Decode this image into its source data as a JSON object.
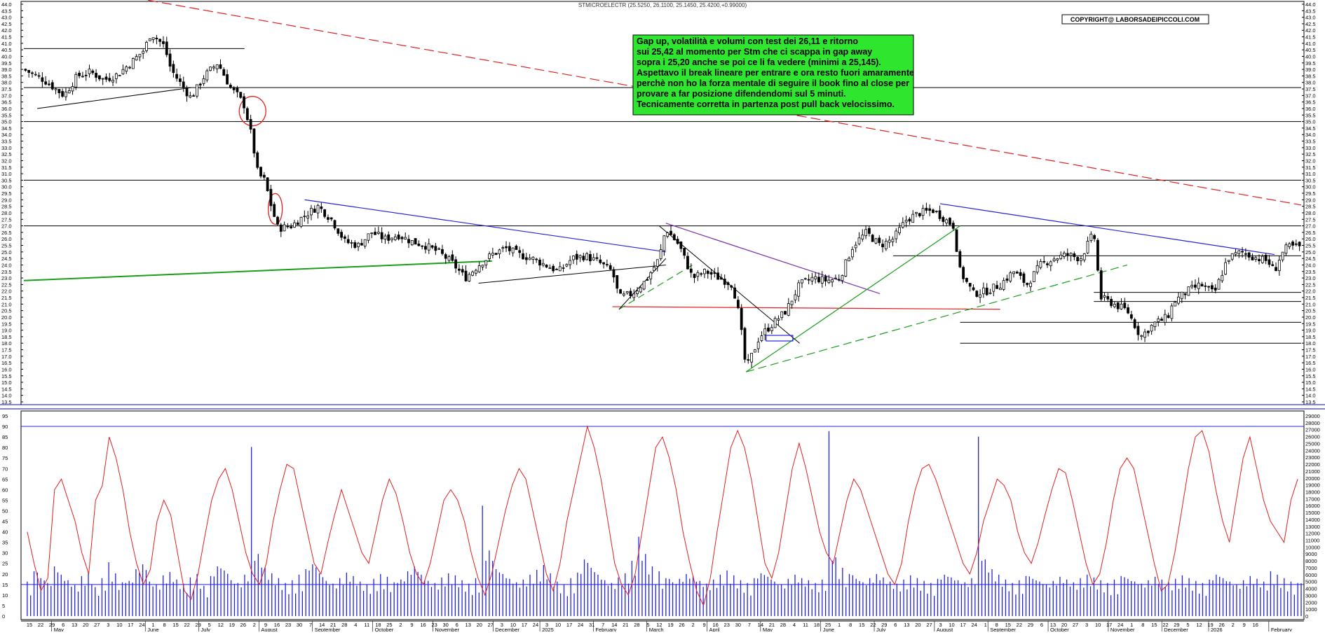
{
  "chart_data": [
    {
      "type": "candlestick",
      "title": "STMICROELECTR (25.5250, 26.1100, 25.1450, 25.4200,+0.99000)",
      "copyright": "COPYRIGHT@ LABORSADEIPICCOLI.COM",
      "annotation_lines": [
        "Gap up, volatilità e volumi con test dei 26,11 e ritorno",
        "sui 25,42 al momento per Stm che ci scappa in gap away",
        "sopra i 25,20 anche se poi ce li fa vedere (minimi a 25,145).",
        "Aspettavo il break lineare per entrare e ora resto fuori amaramente",
        "perchè non ho la forza mentale di seguire il book fino al close per",
        "provare a far posizione difendendomi sul 5 minuti.",
        "Tecnicamente corretta in partenza post pull back velocissimo."
      ],
      "ylim": [
        13.5,
        44.0
      ],
      "y_ticks": [
        "44.0",
        "43.5",
        "43.0",
        "42.5",
        "42.0",
        "41.5",
        "41.0",
        "40.5",
        "40.0",
        "39.5",
        "39.0",
        "38.5",
        "38.0",
        "37.5",
        "37.0",
        "36.5",
        "36.0",
        "35.5",
        "35.0",
        "34.5",
        "34.0",
        "33.5",
        "33.0",
        "32.5",
        "32.0",
        "31.5",
        "31.0",
        "30.5",
        "30.0",
        "29.5",
        "29.0",
        "28.5",
        "28.0",
        "27.5",
        "27.0",
        "26.5",
        "26.0",
        "25.5",
        "25.0",
        "24.5",
        "24.0",
        "23.5",
        "23.0",
        "22.5",
        "22.0",
        "21.5",
        "21.0",
        "20.5",
        "20.0",
        "19.5",
        "19.0",
        "18.5",
        "18.0",
        "17.5",
        "17.0",
        "16.5",
        "16.0",
        "15.5",
        "15.0",
        "14.5",
        "14.0",
        "13.5"
      ],
      "horizontal_levels": [
        40.6,
        37.6,
        35.0,
        30.5,
        27.0,
        24.7,
        21.9,
        21.2,
        19.6,
        18.0
      ],
      "price_path": [
        [
          0,
          39.0
        ],
        [
          3,
          38.2
        ],
        [
          6,
          37.0
        ],
        [
          8,
          38.5
        ],
        [
          10,
          38.8
        ],
        [
          12,
          38.2
        ],
        [
          14,
          38.6
        ],
        [
          16,
          39.5
        ],
        [
          18,
          40.5
        ],
        [
          19,
          41.8
        ],
        [
          21,
          40.8
        ],
        [
          22,
          39.0
        ],
        [
          24,
          37.5
        ],
        [
          25,
          36.8
        ],
        [
          27,
          38.5
        ],
        [
          29,
          39.5
        ],
        [
          30,
          38.5
        ],
        [
          31,
          37.5
        ],
        [
          32,
          37.0
        ],
        [
          33,
          36.2
        ],
        [
          34,
          34.0
        ],
        [
          35,
          31.0
        ],
        [
          36,
          30.5
        ],
        [
          37,
          28.5
        ],
        [
          38,
          26.8
        ],
        [
          40,
          27.0
        ],
        [
          42,
          27.8
        ],
        [
          44,
          28.5
        ],
        [
          46,
          27.5
        ],
        [
          48,
          25.8
        ],
        [
          50,
          25.5
        ],
        [
          52,
          26.5
        ],
        [
          54,
          26.0
        ],
        [
          56,
          26.3
        ],
        [
          58,
          25.8
        ],
        [
          60,
          25.5
        ],
        [
          62,
          25.0
        ],
        [
          64,
          24.2
        ],
        [
          66,
          23.0
        ],
        [
          68,
          24.0
        ],
        [
          70,
          24.8
        ],
        [
          72,
          25.3
        ],
        [
          74,
          24.8
        ],
        [
          76,
          24.5
        ],
        [
          78,
          24.0
        ],
        [
          80,
          23.5
        ],
        [
          82,
          24.5
        ],
        [
          84,
          24.7
        ],
        [
          86,
          24.2
        ],
        [
          88,
          23.5
        ],
        [
          89,
          21.5
        ],
        [
          91,
          21.8
        ],
        [
          93,
          22.8
        ],
        [
          95,
          24.5
        ],
        [
          96,
          26.8
        ],
        [
          98,
          25.5
        ],
        [
          100,
          23.0
        ],
        [
          102,
          23.5
        ],
        [
          104,
          23.0
        ],
        [
          106,
          22.5
        ],
        [
          107,
          20.0
        ],
        [
          108,
          16.0
        ],
        [
          110,
          18.5
        ],
        [
          112,
          19.5
        ],
        [
          114,
          20.5
        ],
        [
          116,
          22.5
        ],
        [
          118,
          23.0
        ],
        [
          120,
          22.8
        ],
        [
          122,
          23.0
        ],
        [
          124,
          25.5
        ],
        [
          126,
          26.5
        ],
        [
          128,
          25.5
        ],
        [
          130,
          26.0
        ],
        [
          132,
          27.5
        ],
        [
          134,
          28.0
        ],
        [
          136,
          28.2
        ],
        [
          139,
          27.0
        ],
        [
          140,
          23.5
        ],
        [
          142,
          21.8
        ],
        [
          144,
          22.0
        ],
        [
          146,
          22.5
        ],
        [
          148,
          23.5
        ],
        [
          150,
          22.5
        ],
        [
          152,
          24.0
        ],
        [
          154,
          24.5
        ],
        [
          156,
          24.8
        ],
        [
          158,
          24.5
        ],
        [
          160,
          26.5
        ],
        [
          161,
          21.5
        ],
        [
          163,
          21.0
        ],
        [
          165,
          20.5
        ],
        [
          166,
          19.5
        ],
        [
          167,
          18.5
        ],
        [
          169,
          19.5
        ],
        [
          171,
          20.0
        ],
        [
          172,
          21.2
        ],
        [
          174,
          22.0
        ],
        [
          176,
          22.5
        ],
        [
          178,
          21.8
        ],
        [
          180,
          24.5
        ],
        [
          182,
          25.0
        ],
        [
          184,
          24.6
        ],
        [
          186,
          24.3
        ],
        [
          187,
          23.5
        ],
        [
          188,
          24.8
        ],
        [
          189,
          25.4
        ]
      ],
      "x_range": [
        0,
        191
      ],
      "day_labels": [
        "15",
        "22",
        "29",
        "6",
        "13",
        "20",
        "27",
        "3",
        "10",
        "17",
        "24",
        "1",
        "8",
        "15",
        "22",
        "29",
        "5",
        "12",
        "19",
        "26",
        "2",
        "9",
        "16",
        "23",
        "30",
        "7",
        "14",
        "21",
        "28",
        "4",
        "11",
        "18",
        "25",
        "2",
        "9",
        "16",
        "23",
        "30",
        "6",
        "13",
        "20",
        "27",
        "3",
        "10",
        "17",
        "24",
        "3",
        "10",
        "17",
        "24",
        "31",
        "7",
        "14",
        "21",
        "28",
        "5",
        "12",
        "19",
        "26",
        "2",
        "9",
        "16",
        "23",
        "30",
        "7",
        "14",
        "21",
        "28",
        "4",
        "11",
        "18",
        "25",
        "1",
        "8",
        "15",
        "22",
        "29",
        "6",
        "13",
        "20",
        "27",
        "3",
        "10",
        "17",
        "24",
        "1",
        "8",
        "15",
        "22",
        "29",
        "6",
        "13",
        "20",
        "27",
        "3",
        "10",
        "17",
        "24",
        "1",
        "8",
        "15",
        "22",
        "29",
        "5",
        "12",
        "19",
        "26",
        "2",
        "9",
        "16"
      ],
      "month_labels": [
        "May",
        "June",
        "July",
        "August",
        "September",
        "October",
        "November",
        "December",
        "2025",
        "February",
        "March",
        "April",
        "May",
        "June",
        "July",
        "August",
        "September",
        "October",
        "November",
        "December",
        "2026",
        "February"
      ],
      "month_positions": [
        5,
        19,
        27,
        36,
        44,
        53,
        62,
        71,
        78,
        86,
        94,
        103,
        111,
        120,
        128,
        137,
        145,
        154,
        163,
        171,
        178,
        187
      ]
    },
    {
      "type": "line+bar",
      "series": [
        {
          "values": [
            40,
            25,
            12,
            18,
            60,
            65,
            55,
            45,
            30,
            20,
            55,
            62,
            85,
            75,
            60,
            40,
            25,
            15,
            22,
            45,
            55,
            48,
            30,
            12,
            8,
            20,
            38,
            55,
            65,
            70,
            60,
            45,
            30,
            20,
            15,
            25,
            45,
            60,
            72,
            70,
            55,
            40,
            25,
            20,
            35,
            48,
            60,
            50,
            40,
            30,
            25,
            40,
            55,
            65,
            58,
            45,
            30,
            20,
            15,
            25,
            40,
            55,
            60,
            55,
            45,
            30,
            18,
            10,
            20,
            35,
            50,
            62,
            70,
            65,
            50,
            35,
            20,
            12,
            25,
            45,
            60,
            75,
            90,
            80,
            65,
            45,
            25,
            15,
            10,
            20,
            40,
            60,
            80,
            85,
            75,
            60,
            40,
            25,
            12,
            5,
            18,
            40,
            60,
            80,
            88,
            80,
            65,
            45,
            25,
            18,
            30,
            50,
            70,
            82,
            70,
            55,
            40,
            30,
            25,
            40,
            55,
            65,
            60,
            50,
            40,
            30,
            20,
            15,
            25,
            45,
            60,
            70,
            72,
            65,
            55,
            45,
            35,
            25,
            20,
            30,
            45,
            55,
            65,
            62,
            55,
            40,
            30,
            25,
            35,
            48,
            60,
            70,
            68,
            55,
            40,
            25,
            15,
            20,
            35,
            55,
            70,
            75,
            70,
            55,
            40,
            25,
            12,
            15,
            30,
            50,
            70,
            85,
            88,
            78,
            60,
            45,
            35,
            55,
            75,
            85,
            70,
            55,
            45,
            40,
            35,
            55,
            65
          ]
        },
        {
          "values": [
            5000,
            6500,
            5500,
            4800,
            7200,
            6000,
            5200,
            4500,
            5800,
            6300,
            4200,
            5500,
            7800,
            6200,
            4900,
            5100,
            6800,
            7500,
            5000,
            4600,
            5900,
            6400,
            5300,
            4700,
            5600,
            6100,
            4400,
            5800,
            7200,
            6600,
            5200,
            4800,
            6000,
            24500,
            9000,
            7000,
            6200,
            5500,
            4800,
            5200,
            6000,
            6800,
            7500,
            6200,
            5100,
            4700,
            5500,
            6300,
            5800,
            5000,
            4600,
            5400,
            6100,
            5700,
            4900,
            5300,
            6500,
            7200,
            6000,
            5100,
            4800,
            5600,
            6200,
            5900,
            5200,
            4700,
            5500,
            16000,
            9500,
            6800,
            6100,
            5400,
            4900,
            5300,
            6000,
            6700,
            7400,
            6200,
            5000,
            4600,
            5500,
            6300,
            8200,
            7000,
            6000,
            5200,
            4800,
            5600,
            6200,
            8000,
            11500,
            9000,
            7200,
            6500,
            5500,
            4900,
            5400,
            6100,
            5800,
            5100,
            4700,
            5300,
            6000,
            6600,
            5900,
            5200,
            4800,
            5500,
            6200,
            5700,
            5000,
            4600,
            5400,
            6000,
            5500,
            5200,
            4800,
            5300,
            26800,
            8500,
            7000,
            6100,
            5400,
            4900,
            5500,
            6100,
            5600,
            5000,
            4700,
            5300,
            5900,
            5500,
            5100,
            4800,
            5400,
            6000,
            5600,
            5200,
            4900,
            5500,
            26000,
            8200,
            6800,
            6000,
            5300,
            4800,
            5200,
            5800,
            5400,
            5000,
            4600,
            5100,
            5700,
            5300,
            4900,
            5500,
            6000,
            5600,
            5200,
            4800,
            5300,
            5800,
            5400,
            5000,
            4700,
            5200,
            5700,
            5300,
            4900,
            5400,
            5900,
            5500,
            5100,
            4800,
            5300,
            6000,
            5500,
            5000,
            4600,
            5200,
            5800,
            5400,
            5000,
            6500,
            6000,
            5500,
            5000,
            4800
          ]
        }
      ],
      "y_ticks_left": [
        "95",
        "90",
        "85",
        "80",
        "75",
        "70",
        "65",
        "60",
        "55",
        "50",
        "45",
        "40",
        "35",
        "30",
        "25",
        "20",
        "15",
        "10",
        "5",
        "0"
      ],
      "y_ticks_right": [
        "29000",
        "28000",
        "27000",
        "26000",
        "25000",
        "24000",
        "23000",
        "22000",
        "21000",
        "20000",
        "19000",
        "18000",
        "17000",
        "16000",
        "15000",
        "14000",
        "13000",
        "12000",
        "11000",
        "10000",
        "9000",
        "8000",
        "7000",
        "6000",
        "5000",
        "4000",
        "3000",
        "2000",
        "1000",
        "0"
      ],
      "levels": [
        90,
        15
      ],
      "ylim_left": [
        0,
        95
      ],
      "ylim_right": [
        0,
        29000
      ]
    }
  ]
}
